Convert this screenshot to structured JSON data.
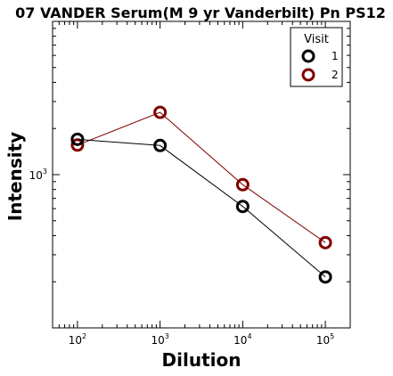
{
  "chart_data": {
    "type": "line",
    "title": "07 VANDER Serum(M 9 yr Vanderbilt) Pn PS12",
    "xlabel": "Dilution",
    "ylabel": "Intensity",
    "xscale": "log",
    "yscale": "log",
    "xlim": [
      50,
      200000
    ],
    "ylim": [
      100,
      10000
    ],
    "x": [
      100,
      1000,
      10000,
      100000
    ],
    "x_tick_labels": [
      {
        "base": "10",
        "exp": "2"
      },
      {
        "base": "10",
        "exp": "3"
      },
      {
        "base": "10",
        "exp": "4"
      },
      {
        "base": "10",
        "exp": "5"
      }
    ],
    "y_tick_labels": [
      {
        "base": "10",
        "exp": "3"
      }
    ],
    "series": [
      {
        "name": "1",
        "color": "#000000",
        "values": [
          1700,
          1550,
          620,
          215
        ]
      },
      {
        "name": "2",
        "color": "#800000",
        "values": [
          1560,
          2550,
          860,
          360
        ]
      }
    ],
    "legend": {
      "title": "Visit",
      "position": "top-right"
    },
    "grid": false,
    "marker": "open-circle"
  }
}
